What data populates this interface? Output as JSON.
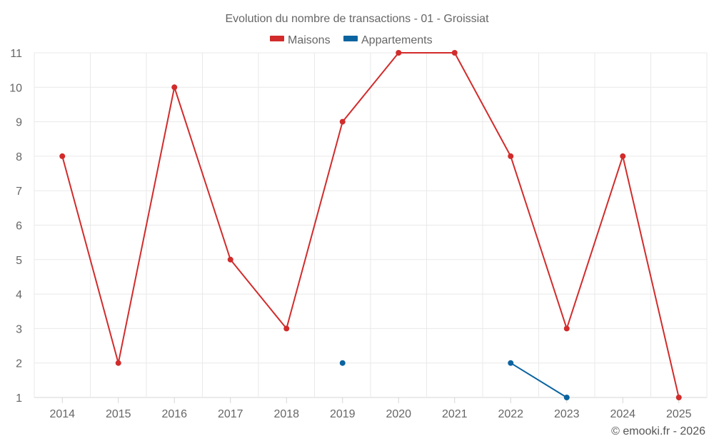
{
  "chart_data": {
    "type": "line",
    "title": "Evolution du nombre de transactions - 01 - Groissiat",
    "categories": [
      "2014",
      "2015",
      "2016",
      "2017",
      "2018",
      "2019",
      "2020",
      "2021",
      "2022",
      "2023",
      "2024",
      "2025"
    ],
    "y_ticks": [
      "1",
      "2",
      "3",
      "4",
      "5",
      "6",
      "7",
      "8",
      "9",
      "10",
      "11"
    ],
    "ylim": [
      1,
      11
    ],
    "grid": true,
    "legend_position": "top-center",
    "series": [
      {
        "name": "Maisons",
        "color": "#d22b2b",
        "values": [
          8,
          2,
          10,
          5,
          3,
          9,
          11,
          11,
          8,
          3,
          8,
          1
        ]
      },
      {
        "name": "Appartements",
        "color": "#0b64a0",
        "values": [
          null,
          null,
          null,
          null,
          null,
          2,
          null,
          null,
          2,
          1,
          null,
          null
        ]
      }
    ]
  },
  "credit": "© emooki.fr - 2026"
}
